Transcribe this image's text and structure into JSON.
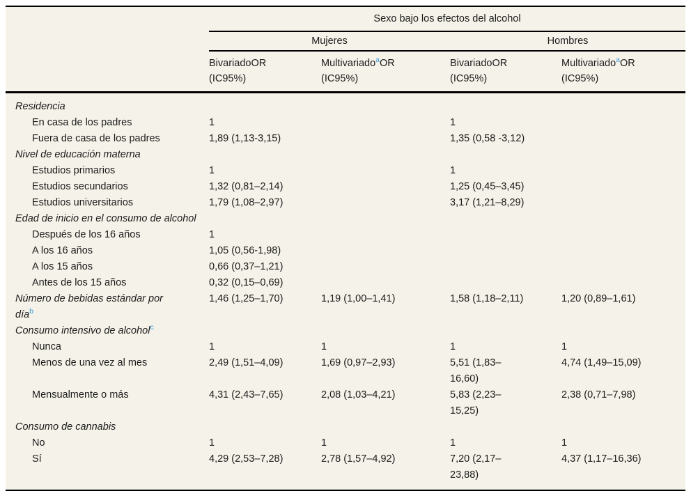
{
  "colors": {
    "table_background": "#f5f2e9",
    "rule": "#000000",
    "text": "#1b1b1b",
    "footnote_marker_blue": "#3e9cd9"
  },
  "header": {
    "spanner": "Sexo bajo los efectos del alcohol",
    "groups": [
      "Mujeres",
      "Hombres"
    ],
    "columns": [
      {
        "name": "Bivariado",
        "sup": "",
        "suffix": "OR",
        "line2": "(IC95%)"
      },
      {
        "name": "Multivariado",
        "sup": "a",
        "suffix": "OR",
        "line2": "(IC95%)"
      },
      {
        "name": "Bivariado",
        "sup": "",
        "suffix": "OR",
        "line2": "(IC95%)"
      },
      {
        "name": "Multivariado",
        "sup": "a",
        "suffix": "OR",
        "line2": "(IC95%)"
      }
    ]
  },
  "rows": [
    {
      "type": "section",
      "label": "Residencia",
      "sup": "",
      "cells": [
        "",
        "",
        "",
        ""
      ]
    },
    {
      "type": "item",
      "label": "En casa de los padres",
      "sup": "",
      "cells": [
        "1",
        "",
        "1",
        ""
      ]
    },
    {
      "type": "item",
      "label": "Fuera de casa de los padres",
      "sup": "",
      "cells": [
        "1,89 (1,13-3,15)",
        "",
        "1,35 (0,58 -3,12)",
        ""
      ]
    },
    {
      "type": "section",
      "label": "Nivel de educación materna",
      "sup": "",
      "cells": [
        "",
        "",
        "",
        ""
      ]
    },
    {
      "type": "item",
      "label": "Estudios primarios",
      "sup": "",
      "cells": [
        "1",
        "",
        "1",
        ""
      ]
    },
    {
      "type": "item",
      "label": "Estudios secundarios",
      "sup": "",
      "cells": [
        "1,32 (0,81–2,14)",
        "",
        "1,25 (0,45–3,45)",
        ""
      ]
    },
    {
      "type": "item",
      "label": "Estudios universitarios",
      "sup": "",
      "cells": [
        "1,79 (1,08–2,97)",
        "",
        "3,17 (1,21–8,29)",
        ""
      ]
    },
    {
      "type": "section",
      "label": "Edad de inicio en el consumo de alcohol",
      "sup": "",
      "cells": [
        "",
        "",
        "",
        ""
      ]
    },
    {
      "type": "item",
      "label": "Después de los 16 años",
      "sup": "",
      "cells": [
        "1",
        "",
        "",
        ""
      ]
    },
    {
      "type": "item",
      "label": "A los 16 años",
      "sup": "",
      "cells": [
        "1,05 (0,56-1,98)",
        "",
        "",
        ""
      ]
    },
    {
      "type": "item",
      "label": "A los 15 años",
      "sup": "",
      "cells": [
        "0,66 (0,37–1,21)",
        "",
        "",
        ""
      ]
    },
    {
      "type": "item",
      "label": "Antes de los 15 años",
      "sup": "",
      "cells": [
        "0,32 (0,15–0,69)",
        "",
        "",
        ""
      ]
    },
    {
      "type": "section",
      "label": "Número de bebidas estándar por\ndía",
      "sup": "b",
      "cells": [
        "1,46 (1,25–1,70)",
        "1,19 (1,00–1,41)",
        "1,58 (1,18–2,11)",
        "1,20 (0,89–1,61)"
      ]
    },
    {
      "type": "section",
      "label": "Consumo intensivo de alcohol",
      "sup": "c",
      "cells": [
        "",
        "",
        "",
        ""
      ]
    },
    {
      "type": "item",
      "label": "Nunca",
      "sup": "",
      "cells": [
        "1",
        "1",
        "1",
        "1"
      ]
    },
    {
      "type": "item",
      "label": "Menos de una vez al mes",
      "sup": "",
      "cells": [
        "2,49 (1,51–4,09)",
        "1,69 (0,97–2,93)",
        "5,51 (1,83–\n16,60)",
        "4,74 (1,49–15,09)"
      ]
    },
    {
      "type": "item",
      "label": "Mensualmente o más",
      "sup": "",
      "cells": [
        "4,31 (2,43–7,65)",
        "2,08 (1,03–4,21)",
        "5,83 (2,23–\n15,25)",
        "2,38 (0,71–7,98)"
      ]
    },
    {
      "type": "section",
      "label": "Consumo de cannabis",
      "sup": "",
      "cells": [
        "",
        "",
        "",
        ""
      ]
    },
    {
      "type": "item",
      "label": "No",
      "sup": "",
      "cells": [
        "1",
        "1",
        "1",
        "1"
      ]
    },
    {
      "type": "item",
      "label": "Sí",
      "sup": "",
      "cells": [
        "4,29 (2,53–7,28)",
        "2,78 (1,57–4,92)",
        "7,20 (2,17–\n23,88)",
        "4,37 (1,17–16,36)"
      ]
    }
  ]
}
